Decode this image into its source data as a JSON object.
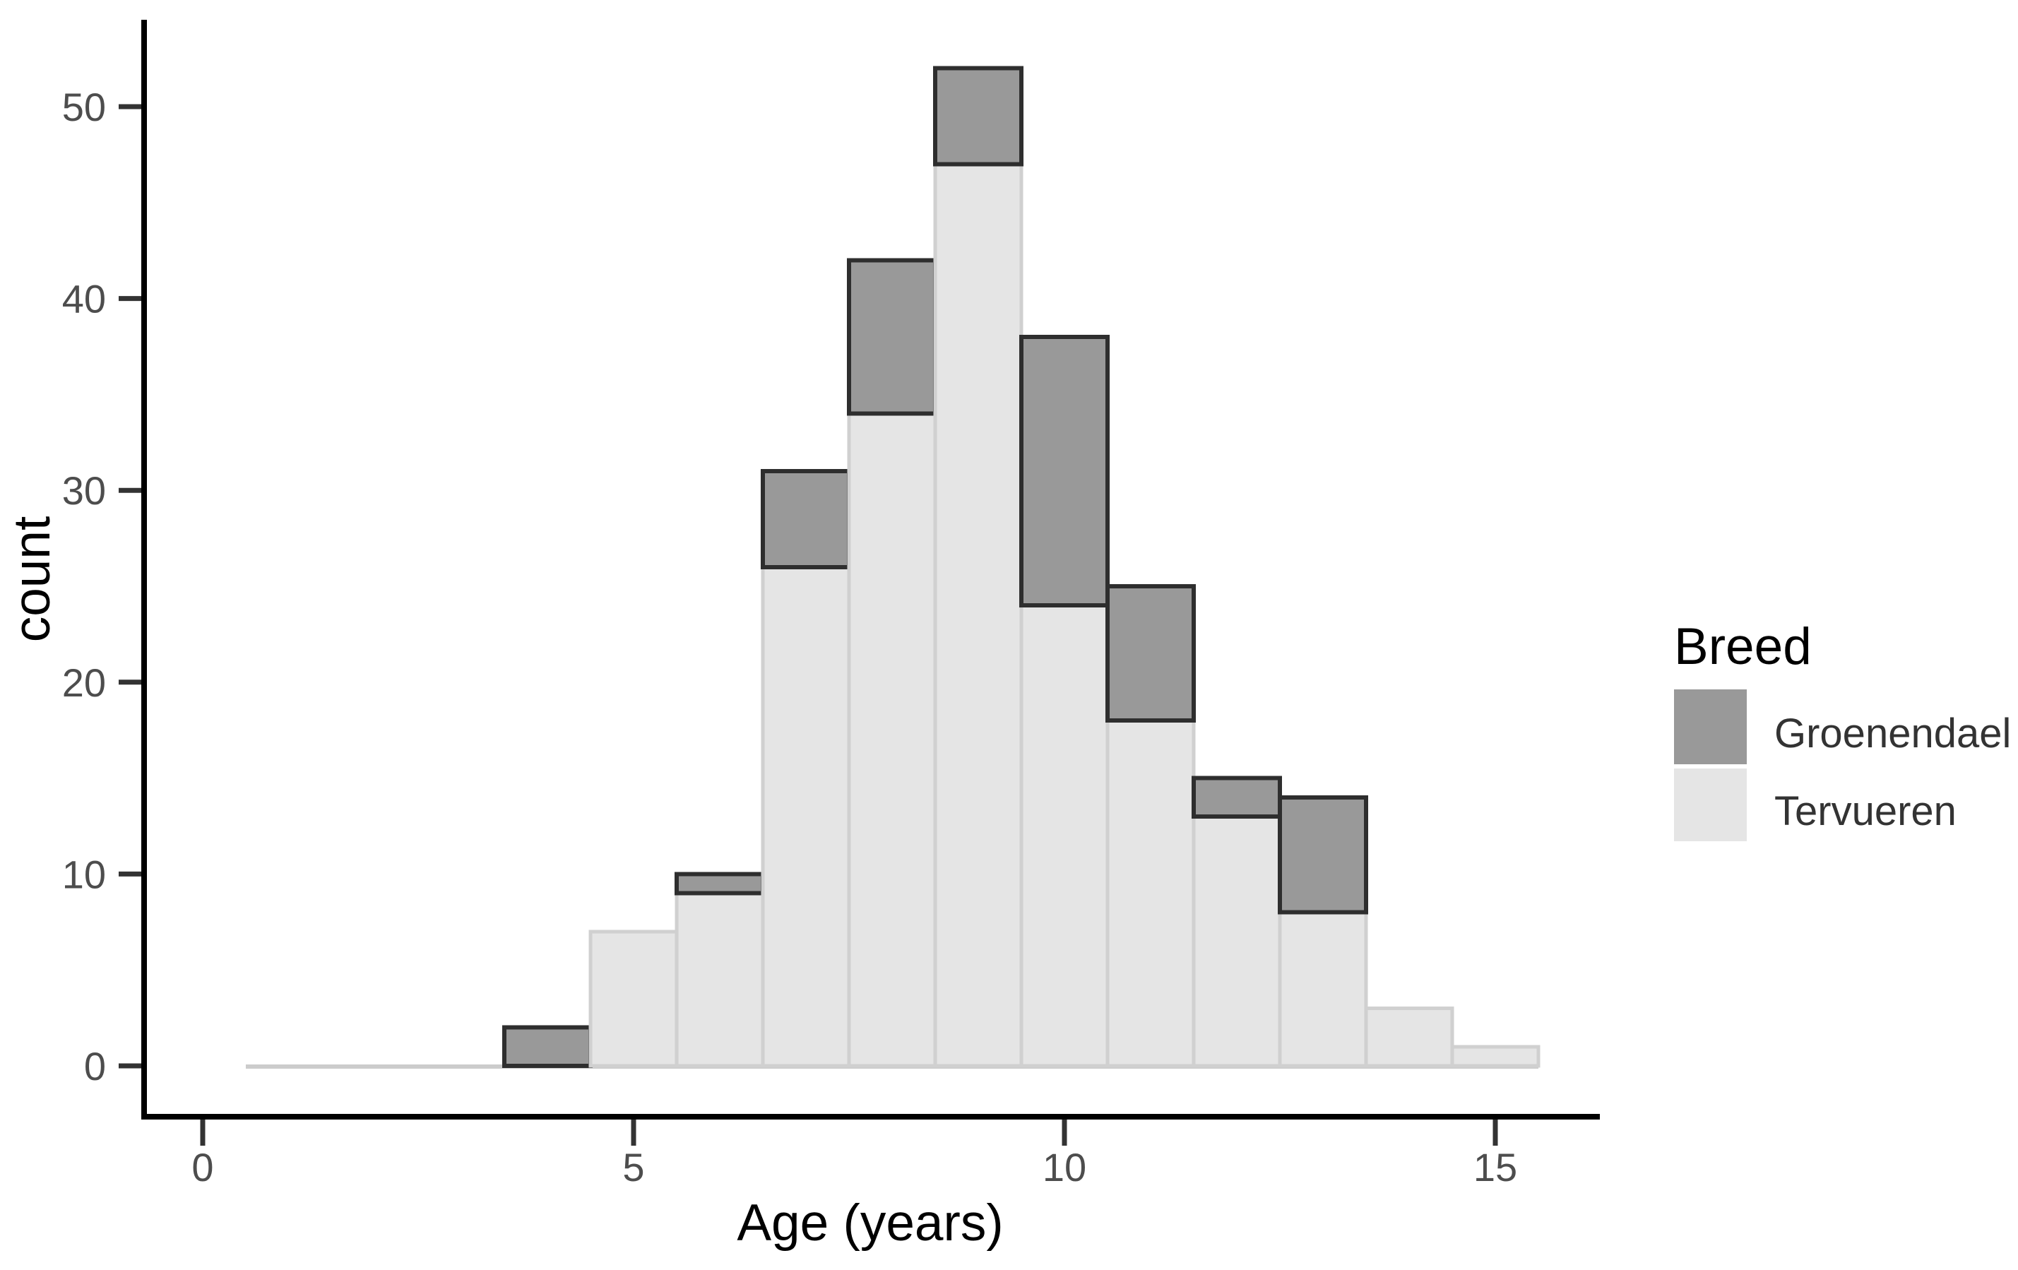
{
  "figure": {
    "x_axis": {
      "title": "Age (years)",
      "ticks": [
        0,
        5,
        10,
        15
      ]
    },
    "y_axis": {
      "title": "count",
      "ticks": [
        0,
        10,
        20,
        30,
        40,
        50
      ]
    },
    "legend": {
      "title": "Breed",
      "entries": [
        {
          "label": "Groenendael",
          "swatch_color": "#999999"
        },
        {
          "label": "Tervueren",
          "swatch_color": "#e5e5e5"
        }
      ]
    }
  },
  "colors": {
    "background": "#ffffff",
    "axis_line": "#000000",
    "tick_mark": "#333333",
    "tick_label": "#4d4d4d",
    "axis_title": "#000000",
    "legend_title": "#000000",
    "legend_label": "#333333",
    "groenendael_fill": "#999999",
    "groenendael_stroke": "#2e2e2e",
    "tervueren_fill": "#e5e5e5",
    "tervueren_stroke": "#d0d0d0",
    "zero_baseline": "#cccccc"
  },
  "chart_data": {
    "type": "bar",
    "subtype": "stacked-histogram",
    "title": "",
    "xlabel": "Age (years)",
    "ylabel": "count",
    "bin_width": 1,
    "bin_centers": [
      1,
      2,
      3,
      4,
      5,
      6,
      7,
      8,
      9,
      10,
      11,
      12,
      13,
      14,
      15
    ],
    "series": [
      {
        "name": "Tervueren",
        "stack_position": "bottom",
        "values": [
          0,
          0,
          0,
          0,
          7,
          9,
          26,
          34,
          47,
          24,
          18,
          13,
          8,
          3,
          1
        ]
      },
      {
        "name": "Groenendael",
        "stack_position": "top",
        "values": [
          0,
          0,
          0,
          2,
          0,
          1,
          5,
          8,
          5,
          14,
          7,
          2,
          6,
          0,
          0
        ]
      }
    ],
    "stacked_totals": [
      0,
      0,
      0,
      2,
      7,
      10,
      31,
      42,
      52,
      38,
      25,
      15,
      14,
      3,
      1
    ],
    "x_ticks": [
      0,
      5,
      10,
      15
    ],
    "y_ticks": [
      0,
      10,
      20,
      30,
      40,
      50
    ],
    "xlim": [
      -0.25,
      16.25
    ],
    "ylim": [
      0,
      54.6
    ],
    "grid": false,
    "legend_position": "right",
    "legend_title": "Breed"
  }
}
